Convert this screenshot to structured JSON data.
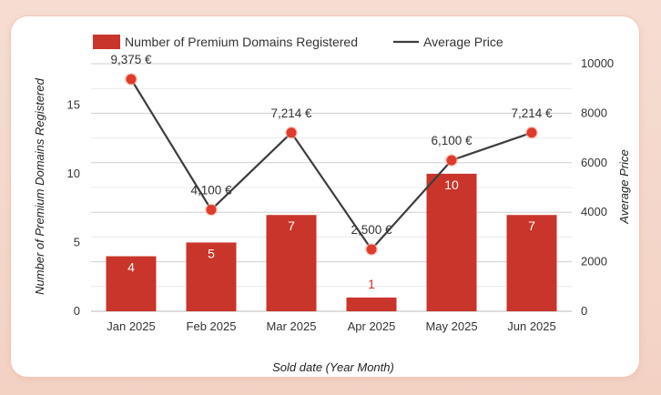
{
  "chart_data": {
    "type": "bar",
    "categories": [
      "Jan 2025",
      "Feb 2025",
      "Mar 2025",
      "Apr 2025",
      "May 2025",
      "Jun 2025"
    ],
    "series": [
      {
        "name": "Number of Premium Domains Registered",
        "type": "bar",
        "axis": "left",
        "values": [
          4,
          5,
          7,
          1,
          10,
          7
        ],
        "color": "#c9352a"
      },
      {
        "name": "Average Price",
        "type": "line",
        "axis": "right",
        "values": [
          9375,
          4100,
          7214,
          2500,
          6100,
          7214
        ],
        "labels": [
          "9,375 €",
          "4,100 €",
          "7,214 €",
          "2,500 €",
          "6,100 €",
          "7,214 €"
        ],
        "color": "#3d3d3d",
        "marker_color": "#e03a2a"
      }
    ],
    "xlabel": "Sold date (Year Month)",
    "ylabel": "Number of Premium Domains Registered",
    "ylabel_right": "Average Price",
    "ylim": [
      0,
      18
    ],
    "ylim_right": [
      0,
      10000
    ],
    "yticks": [
      "0",
      "5",
      "10",
      "15"
    ],
    "yticks_right": [
      "0",
      "2000",
      "4000",
      "6000",
      "8000",
      "10000"
    ],
    "legend": "top-left",
    "grid": true
  }
}
